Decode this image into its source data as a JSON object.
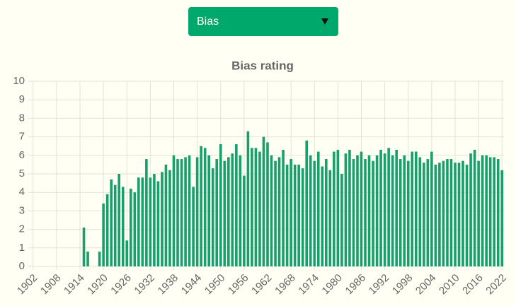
{
  "dropdown": {
    "selected": "Bias"
  },
  "chart_data": {
    "type": "bar",
    "title": "Bias rating",
    "color": "#16a06c",
    "categories": [
      "1902",
      null,
      null,
      null,
      null,
      null,
      "1908",
      null,
      null,
      null,
      null,
      null,
      "1914",
      null,
      null,
      null,
      null,
      null,
      "1920",
      null,
      null,
      null,
      null,
      null,
      "1926",
      null,
      null,
      null,
      null,
      null,
      "1932",
      null,
      null,
      null,
      null,
      null,
      "1938",
      null,
      null,
      null,
      null,
      null,
      "1944",
      null,
      null,
      null,
      null,
      null,
      "1950",
      null,
      null,
      null,
      null,
      null,
      "1956",
      null,
      null,
      null,
      null,
      null,
      "1962",
      null,
      null,
      null,
      null,
      null,
      "1968",
      null,
      null,
      null,
      null,
      null,
      "1974",
      null,
      null,
      null,
      null,
      null,
      "1980",
      null,
      null,
      null,
      null,
      null,
      "1986",
      null,
      null,
      null,
      null,
      null,
      "1992",
      null,
      null,
      null,
      null,
      null,
      "1998",
      null,
      null,
      null,
      null,
      null,
      "2004",
      null,
      null,
      null,
      null,
      null,
      "2010",
      null,
      null,
      null,
      null,
      null,
      "2016",
      null,
      null,
      null,
      null,
      null,
      "2022"
    ],
    "values": [
      null,
      null,
      null,
      null,
      null,
      null,
      null,
      null,
      null,
      null,
      null,
      null,
      null,
      2.1,
      0.8,
      null,
      null,
      0.8,
      3.4,
      3.9,
      4.7,
      4.4,
      5.0,
      4.3,
      1.4,
      4.2,
      4.0,
      4.8,
      4.8,
      5.8,
      4.8,
      5.0,
      4.6,
      5.1,
      5.5,
      5.2,
      6.0,
      5.8,
      5.8,
      5.9,
      6.0,
      4.3,
      5.9,
      6.5,
      6.4,
      6.0,
      5.3,
      5.8,
      6.6,
      5.7,
      5.9,
      6.1,
      6.6,
      6.0,
      4.9,
      7.3,
      6.4,
      6.4,
      6.2,
      7.0,
      6.7,
      6.0,
      5.7,
      5.9,
      6.3,
      5.5,
      5.8,
      5.5,
      5.5,
      5.3,
      6.8,
      6.0,
      5.7,
      6.2,
      5.4,
      5.8,
      5.2,
      6.2,
      6.3,
      5.0,
      6.1,
      6.3,
      5.8,
      6.0,
      6.2,
      5.8,
      6.0,
      5.7,
      6.0,
      6.3,
      6.1,
      6.4,
      6.0,
      6.3,
      5.8,
      6.0,
      5.7,
      6.2,
      6.2,
      5.9,
      5.6,
      5.8,
      6.2,
      5.5,
      5.6,
      5.7,
      5.8,
      5.8,
      5.6,
      5.6,
      5.7,
      5.5,
      6.1,
      6.3,
      5.7,
      6.0,
      6.0,
      5.9,
      5.9,
      5.8,
      5.2
    ],
    "ylim": [
      0,
      10
    ],
    "yticks": [
      0,
      1,
      2,
      3,
      4,
      5,
      6,
      7,
      8,
      9,
      10
    ],
    "grid": true
  }
}
